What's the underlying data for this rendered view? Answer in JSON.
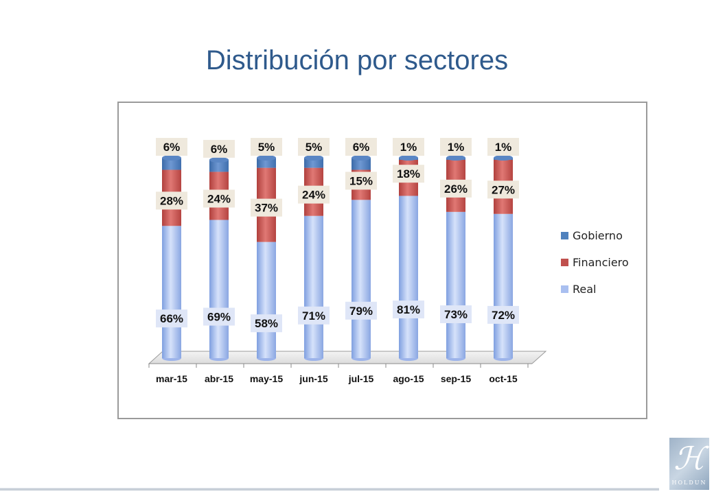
{
  "slide": {
    "title": "Distribución por sectores",
    "logo_text": "HOLDUN"
  },
  "chart_data": {
    "type": "bar",
    "stacked": true,
    "percent": true,
    "categories": [
      "mar-15",
      "abr-15",
      "may-15",
      "jun-15",
      "jul-15",
      "ago-15",
      "sep-15",
      "oct-15"
    ],
    "series": [
      {
        "name": "Real",
        "values": [
          66,
          69,
          58,
          71,
          79,
          81,
          73,
          72
        ],
        "labels": [
          "66%",
          "69%",
          "58%",
          "71%",
          "79%",
          "81%",
          "73%",
          "72%"
        ],
        "color": "#a9bff0"
      },
      {
        "name": "Financiero",
        "values": [
          28,
          24,
          37,
          24,
          15,
          18,
          26,
          27
        ],
        "labels": [
          "28%",
          "24%",
          "37%",
          "24%",
          "15%",
          "18%",
          "26%",
          "27%"
        ],
        "color": "#c0504d"
      },
      {
        "name": "Gobierno",
        "values": [
          6,
          6,
          5,
          5,
          6,
          1,
          1,
          1
        ],
        "labels": [
          "6%",
          "6%",
          "5%",
          "5%",
          "6%",
          "1%",
          "1%",
          "1%"
        ],
        "color": "#4f81bd"
      }
    ],
    "legend_order": [
      "Gobierno",
      "Financiero",
      "Real"
    ],
    "legend_position": "right",
    "ylim": [
      0,
      100
    ],
    "grid": false,
    "style_3d": true
  }
}
